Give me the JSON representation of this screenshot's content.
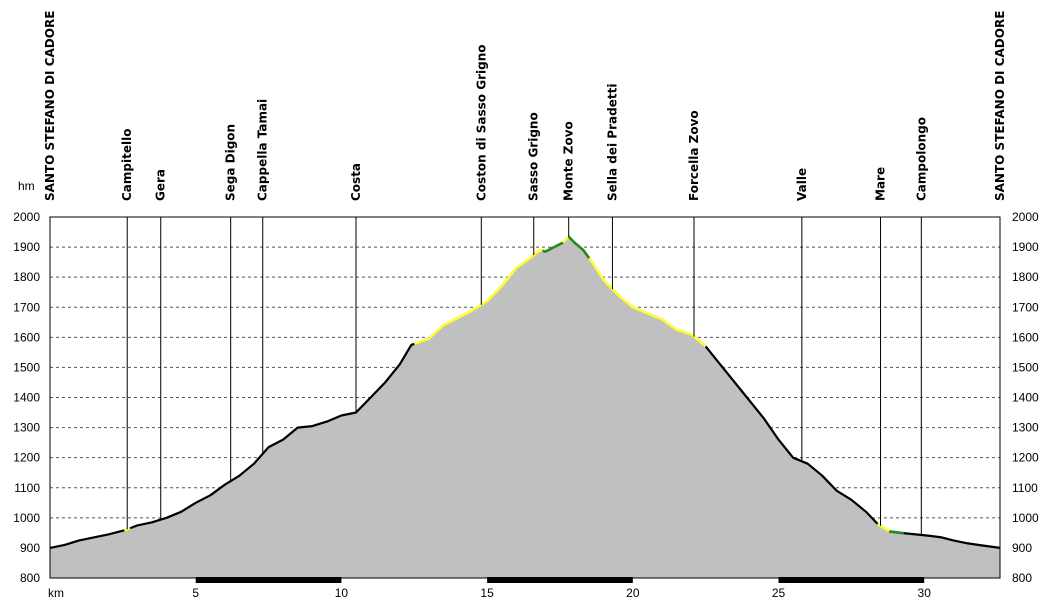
{
  "chart_data": {
    "type": "area",
    "title": "",
    "xlabel": "km",
    "ylabel": "hm",
    "xlim": [
      0,
      32.6
    ],
    "ylim": [
      800,
      2000
    ],
    "x_ticks": [
      5,
      10,
      15,
      20,
      25,
      30
    ],
    "y_ticks": [
      800,
      900,
      1000,
      1100,
      1200,
      1300,
      1400,
      1500,
      1600,
      1700,
      1800,
      1900,
      2000
    ],
    "grid": "horizontal dashed",
    "colors": {
      "fill": "#c0c0c0",
      "profile": "#000000",
      "paved_yellow": "#ffff33",
      "trail_green": "#228b22",
      "axis_band": "#000000"
    },
    "waypoints": [
      {
        "name": "SANTO STEFANO DI CADORE",
        "km": 0
      },
      {
        "name": "Campitello",
        "km": 2.65
      },
      {
        "name": "Gera",
        "km": 3.8
      },
      {
        "name": "Sega Digon",
        "km": 6.2
      },
      {
        "name": "Cappella Tamai",
        "km": 7.3
      },
      {
        "name": "Costa",
        "km": 10.5
      },
      {
        "name": "Coston di Sasso Grigno",
        "km": 14.8
      },
      {
        "name": "Sasso Grigno",
        "km": 16.6
      },
      {
        "name": "Monte Zovo",
        "km": 17.8
      },
      {
        "name": "Sella dei Pradetti",
        "km": 19.3
      },
      {
        "name": "Forcella Zovo",
        "km": 22.1
      },
      {
        "name": "Valle",
        "km": 25.8
      },
      {
        "name": "Mare",
        "km": 28.5
      },
      {
        "name": "Campolongo",
        "km": 29.9
      },
      {
        "name": "SANTO STEFANO DI CADORE",
        "km": 32.6
      }
    ],
    "profile": {
      "x": [
        0,
        0.5,
        1,
        1.5,
        2,
        2.6,
        3,
        3.5,
        4,
        4.5,
        5,
        5.5,
        6,
        6.5,
        7,
        7.5,
        8,
        8.5,
        9,
        9.5,
        10,
        10.5,
        11,
        11.5,
        12,
        12.4,
        13,
        13.5,
        14,
        14.5,
        15,
        15.5,
        16,
        16.5,
        16.8,
        17,
        17.3,
        17.6,
        17.8,
        18,
        18.3,
        18.6,
        19,
        19.5,
        20,
        20.5,
        21,
        21.5,
        22,
        22.5,
        23,
        23.5,
        24,
        24.5,
        25,
        25.5,
        26,
        26.5,
        27,
        27.5,
        28,
        28.4,
        28.8,
        29.2,
        29.7,
        30.2,
        30.6,
        31,
        31.5,
        32,
        32.6
      ],
      "y": [
        900,
        910,
        925,
        935,
        945,
        960,
        975,
        985,
        1000,
        1020,
        1050,
        1075,
        1110,
        1140,
        1180,
        1235,
        1260,
        1300,
        1305,
        1320,
        1340,
        1350,
        1400,
        1450,
        1510,
        1575,
        1595,
        1640,
        1665,
        1690,
        1720,
        1770,
        1830,
        1865,
        1890,
        1885,
        1900,
        1915,
        1935,
        1915,
        1890,
        1850,
        1790,
        1740,
        1700,
        1680,
        1660,
        1625,
        1610,
        1570,
        1510,
        1450,
        1390,
        1330,
        1260,
        1200,
        1180,
        1140,
        1090,
        1060,
        1020,
        980,
        955,
        950,
        945,
        940,
        935,
        925,
        915,
        908,
        900
      ]
    },
    "surface_segments": [
      {
        "type": "paved_yellow",
        "from_km": 2.55,
        "to_km": 2.75
      },
      {
        "type": "paved_yellow",
        "from_km": 12.5,
        "to_km": 16.9
      },
      {
        "type": "trail_green",
        "from_km": 16.9,
        "to_km": 17.6
      },
      {
        "type": "paved_yellow",
        "from_km": 17.6,
        "to_km": 17.8
      },
      {
        "type": "trail_green",
        "from_km": 17.8,
        "to_km": 18.5
      },
      {
        "type": "paved_yellow",
        "from_km": 18.5,
        "to_km": 22.5
      },
      {
        "type": "paved_yellow",
        "from_km": 28.4,
        "to_km": 28.8
      },
      {
        "type": "trail_green",
        "from_km": 28.8,
        "to_km": 29.3
      }
    ],
    "axis_band_dark": [
      [
        5,
        10
      ],
      [
        15,
        20
      ],
      [
        25,
        30
      ]
    ]
  }
}
